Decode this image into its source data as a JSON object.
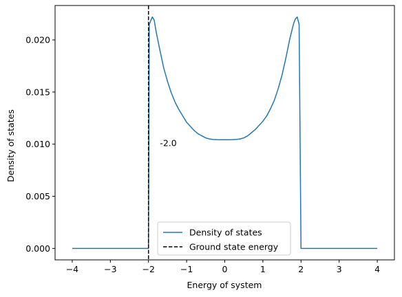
{
  "chart_data": {
    "type": "line",
    "xlabel": "Energy of system",
    "ylabel": "Density of states",
    "xlim": [
      -4.45,
      4.45
    ],
    "ylim": [
      -0.0011,
      0.0233
    ],
    "xticks": [
      -4,
      -3,
      -2,
      -1,
      0,
      1,
      2,
      3,
      4
    ],
    "xtick_labels": [
      "−4",
      "−3",
      "−2",
      "−1",
      "0",
      "1",
      "2",
      "3",
      "4"
    ],
    "yticks": [
      0.0,
      0.005,
      0.01,
      0.015,
      0.02
    ],
    "ytick_labels": [
      "0.000",
      "0.005",
      "0.010",
      "0.015",
      "0.020"
    ],
    "grid": false,
    "legend_position": "bottom-center",
    "series": [
      {
        "name": "Density of states",
        "color": "#1f77b4",
        "style": "solid",
        "points": [
          [
            -4.0,
            0.0
          ],
          [
            -2.05,
            0.0
          ],
          [
            -2.0,
            0.0
          ],
          [
            -1.98,
            0.0215
          ],
          [
            -1.9,
            0.0222
          ],
          [
            -1.85,
            0.0219
          ],
          [
            -1.8,
            0.0208
          ],
          [
            -1.7,
            0.019
          ],
          [
            -1.6,
            0.0173
          ],
          [
            -1.5,
            0.016
          ],
          [
            -1.4,
            0.0149
          ],
          [
            -1.3,
            0.014
          ],
          [
            -1.2,
            0.0133
          ],
          [
            -1.1,
            0.0127
          ],
          [
            -1.0,
            0.0121
          ],
          [
            -0.9,
            0.0117
          ],
          [
            -0.8,
            0.0113
          ],
          [
            -0.7,
            0.011
          ],
          [
            -0.6,
            0.0108
          ],
          [
            -0.5,
            0.0106
          ],
          [
            -0.4,
            0.0105
          ],
          [
            -0.3,
            0.01045
          ],
          [
            -0.2,
            0.01043
          ],
          [
            -0.1,
            0.01042
          ],
          [
            0.0,
            0.01042
          ],
          [
            0.1,
            0.01042
          ],
          [
            0.2,
            0.01043
          ],
          [
            0.3,
            0.01046
          ],
          [
            0.4,
            0.0105
          ],
          [
            0.5,
            0.0106
          ],
          [
            0.6,
            0.0108
          ],
          [
            0.7,
            0.0111
          ],
          [
            0.8,
            0.0114
          ],
          [
            0.9,
            0.0118
          ],
          [
            1.0,
            0.0122
          ],
          [
            1.1,
            0.0127
          ],
          [
            1.2,
            0.0134
          ],
          [
            1.3,
            0.0142
          ],
          [
            1.4,
            0.0153
          ],
          [
            1.5,
            0.0166
          ],
          [
            1.6,
            0.0182
          ],
          [
            1.7,
            0.02
          ],
          [
            1.8,
            0.0215
          ],
          [
            1.85,
            0.022
          ],
          [
            1.9,
            0.0222
          ],
          [
            1.95,
            0.0215
          ],
          [
            2.0,
            0.0
          ],
          [
            4.0,
            0.0
          ]
        ]
      },
      {
        "name": "Ground state energy",
        "color": "#000000",
        "style": "dashed",
        "vline_x": -2.0
      }
    ],
    "annotations": [
      {
        "text": "-2.0",
        "x": -1.7,
        "y": 0.0098
      }
    ]
  }
}
